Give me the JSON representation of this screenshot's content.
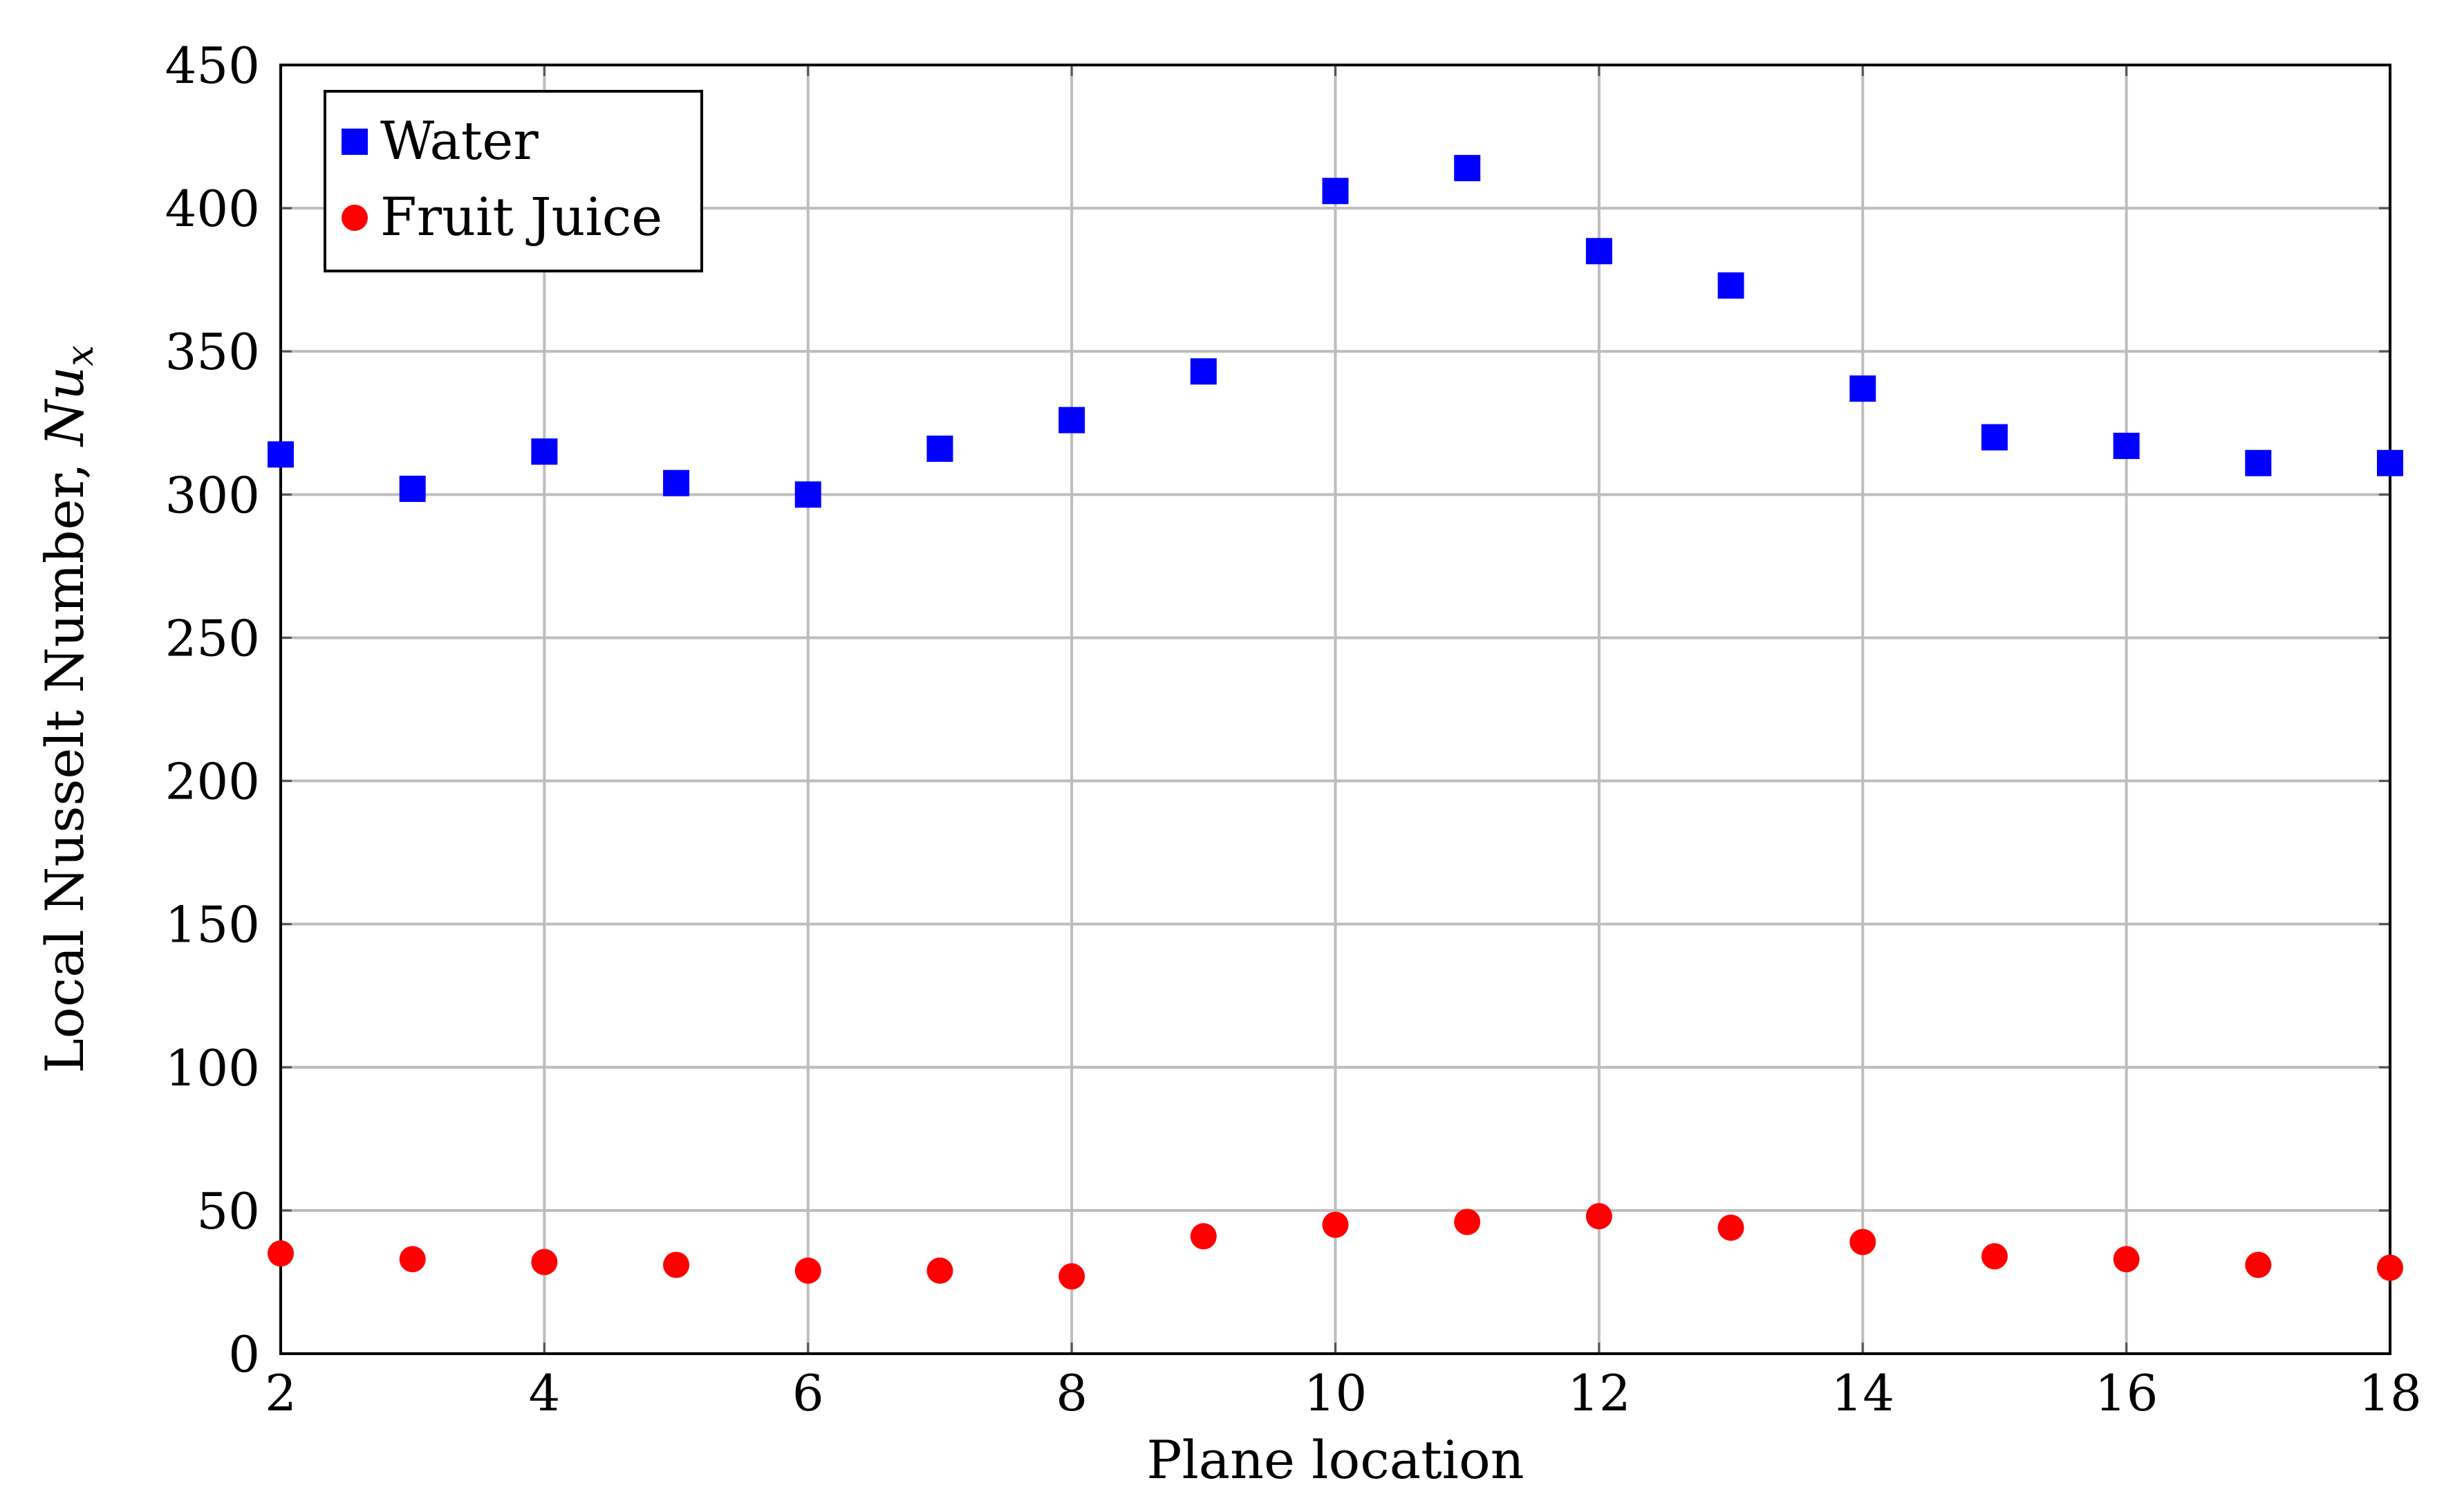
{
  "chart_data": {
    "type": "scatter",
    "title": "",
    "xlabel": "Plane location",
    "ylabel": "Local Nusselt Number, ",
    "ylabel_math_main": "Nu",
    "ylabel_math_sub": "x",
    "xlim": [
      2,
      18
    ],
    "ylim": [
      0,
      450
    ],
    "xticks": [
      2,
      4,
      6,
      8,
      10,
      12,
      14,
      16,
      18
    ],
    "yticks": [
      0,
      50,
      100,
      150,
      200,
      250,
      300,
      350,
      400,
      450
    ],
    "grid": true,
    "legend_position": "top-left",
    "series": [
      {
        "name": "Water",
        "marker": "square",
        "color": "#0000ff",
        "x": [
          2,
          3,
          4,
          5,
          6,
          7,
          8,
          9,
          10,
          11,
          12,
          13,
          14,
          15,
          16,
          17,
          18
        ],
        "y": [
          314,
          302,
          315,
          304,
          300,
          316,
          326,
          343,
          406,
          414,
          385,
          373,
          337,
          320,
          317,
          311,
          311
        ]
      },
      {
        "name": "Fruit Juice",
        "marker": "circle",
        "color": "#ff0000",
        "x": [
          2,
          3,
          4,
          5,
          6,
          7,
          8,
          9,
          10,
          11,
          12,
          13,
          14,
          15,
          16,
          17,
          18
        ],
        "y": [
          35,
          33,
          32,
          31,
          29,
          29,
          27,
          41,
          45,
          46,
          48,
          44,
          39,
          34,
          33,
          31,
          30
        ]
      }
    ]
  }
}
